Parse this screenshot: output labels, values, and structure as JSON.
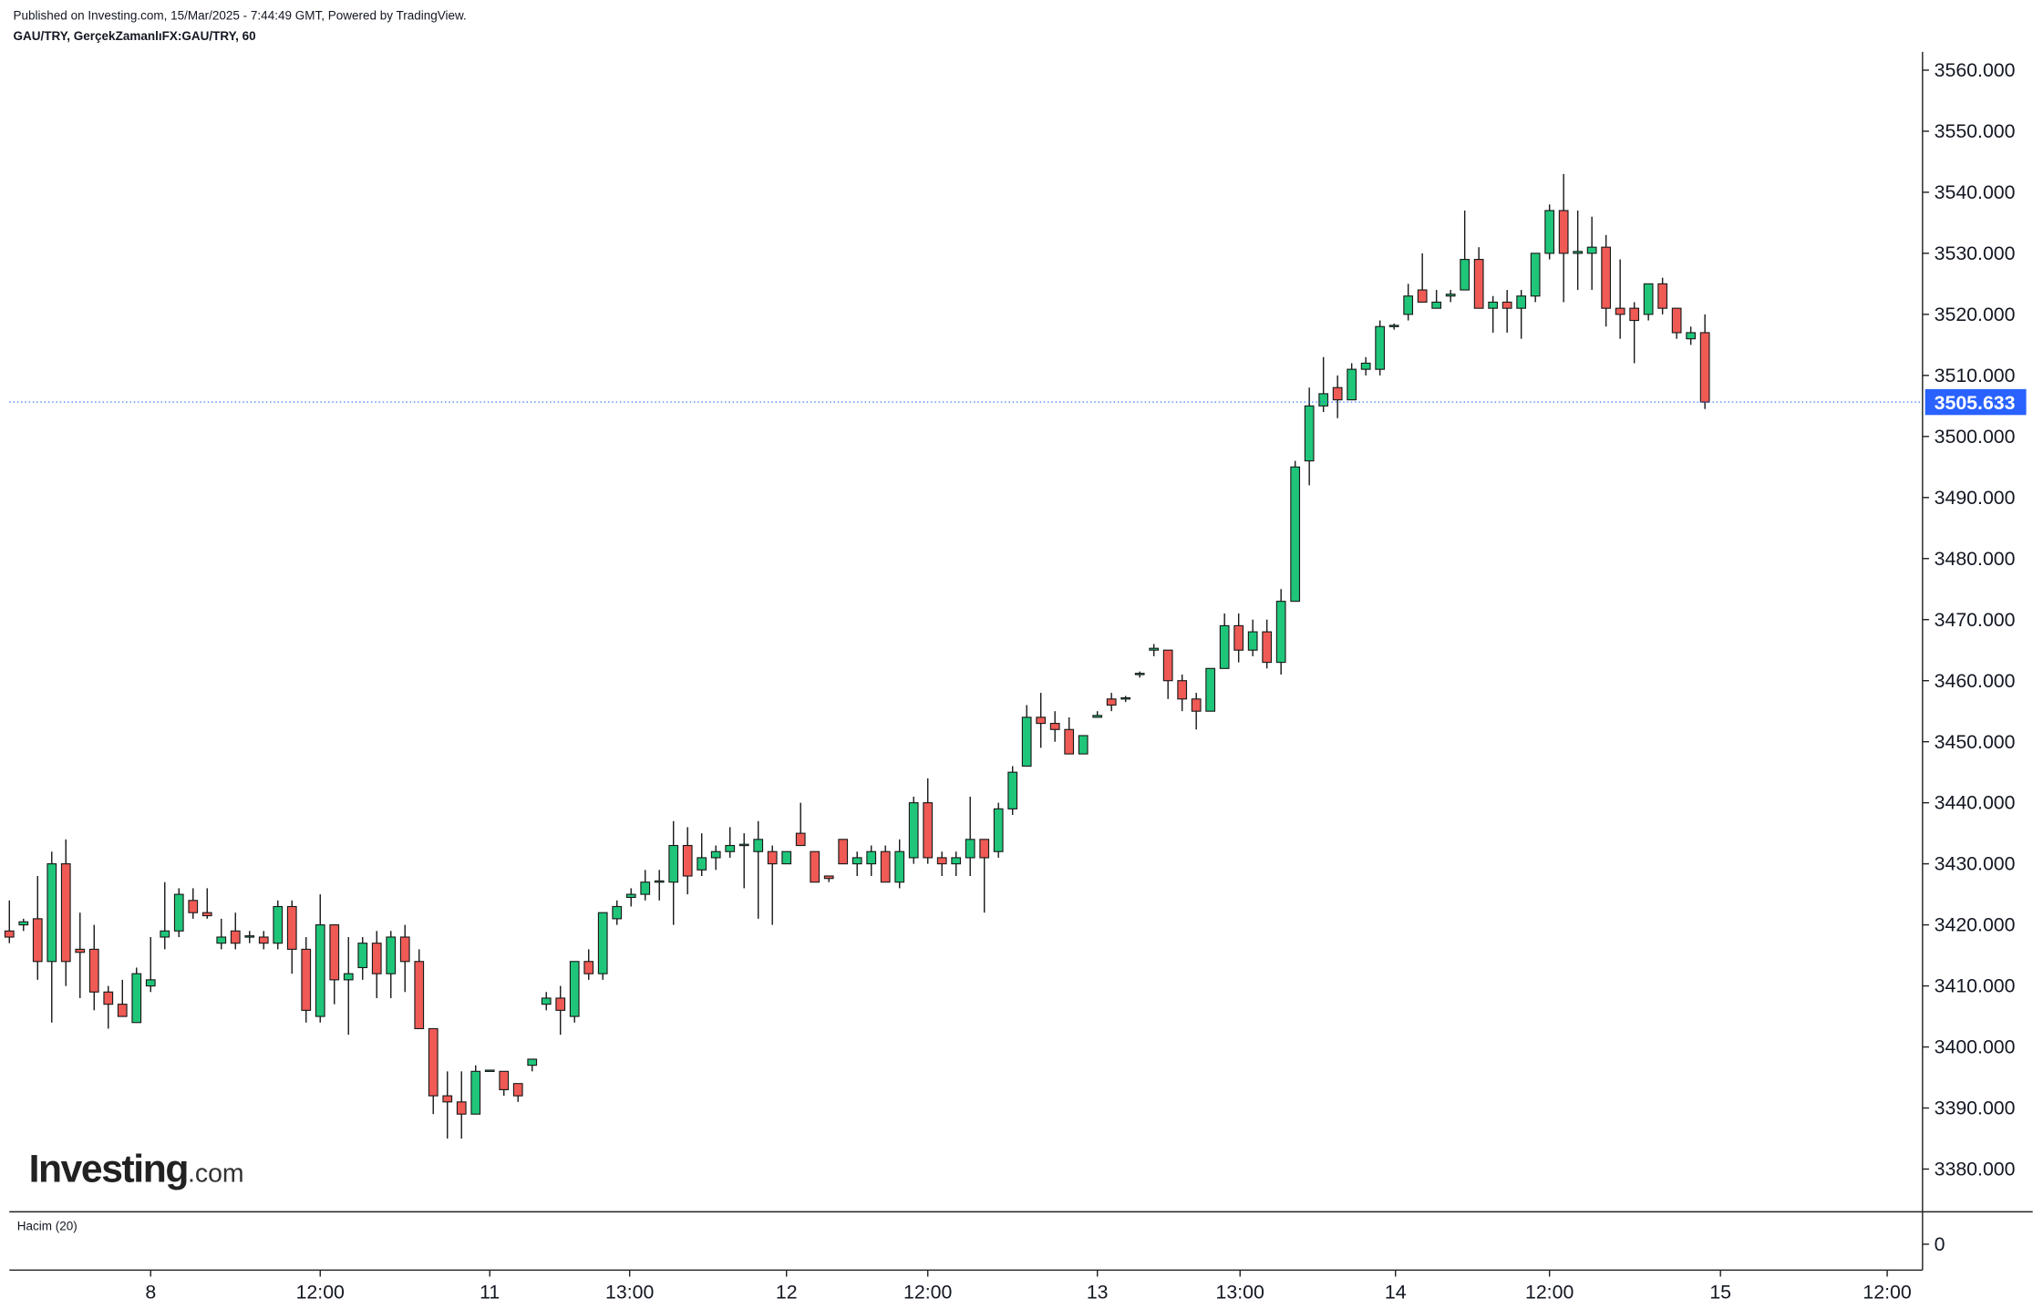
{
  "chart_data": {
    "type": "candlestick",
    "header": "Published on Investing.com, 15/Mar/2025 - 7:44:49 GMT, Powered by TradingView.",
    "symbol": "GAU/TRY, GerçekZamanlıFX:GAU/TRY, 60",
    "logo": {
      "main": "Investing",
      "suffix": ".com"
    },
    "volume_title": "Hacim (20)",
    "volume_yticks": [
      0
    ],
    "up_color": "#1fc67a",
    "down_color": "#ef5a55",
    "last_price_color": "#2962ff",
    "last_price": {
      "value": 3505.633,
      "label": "3505.633"
    },
    "ylim": [
      3373,
      3563
    ],
    "yticks": [
      {
        "value": 3380,
        "label": "3380.000"
      },
      {
        "value": 3390,
        "label": "3390.000"
      },
      {
        "value": 3400,
        "label": "3400.000"
      },
      {
        "value": 3410,
        "label": "3410.000"
      },
      {
        "value": 3420,
        "label": "3420.000"
      },
      {
        "value": 3430,
        "label": "3430.000"
      },
      {
        "value": 3440,
        "label": "3440.000"
      },
      {
        "value": 3450,
        "label": "3450.000"
      },
      {
        "value": 3460,
        "label": "3460.000"
      },
      {
        "value": 3470,
        "label": "3470.000"
      },
      {
        "value": 3480,
        "label": "3480.000"
      },
      {
        "value": 3490,
        "label": "3490.000"
      },
      {
        "value": 3500,
        "label": "3500.000"
      },
      {
        "value": 3510,
        "label": "3510.000"
      },
      {
        "value": 3520,
        "label": "3520.000"
      },
      {
        "value": 3530,
        "label": "3530.000"
      },
      {
        "value": 3540,
        "label": "3540.000"
      },
      {
        "value": 3550,
        "label": "3550.000"
      },
      {
        "value": 3560,
        "label": "3560.000"
      }
    ],
    "xlim": [
      0,
      135.4
    ],
    "xticks": [
      {
        "value": 10,
        "label": "8"
      },
      {
        "value": 22,
        "label": "12:00"
      },
      {
        "value": 34,
        "label": "11"
      },
      {
        "value": 43.9,
        "label": "13:00"
      },
      {
        "value": 55,
        "label": "12"
      },
      {
        "value": 65,
        "label": "12:00"
      },
      {
        "value": 77,
        "label": "13"
      },
      {
        "value": 87.1,
        "label": "13:00"
      },
      {
        "value": 98.1,
        "label": "14"
      },
      {
        "value": 109,
        "label": "12:00"
      },
      {
        "value": 121.1,
        "label": "15"
      },
      {
        "value": 132.9,
        "label": "12:00"
      }
    ],
    "open": [
      3419,
      3420,
      3421,
      3414,
      3430,
      3416,
      3416,
      3409,
      3407,
      3404,
      3410,
      3418,
      3419,
      3424,
      3422,
      3417,
      3419,
      3418,
      3418,
      3417,
      3423,
      3416,
      3405,
      3420,
      3411,
      3413,
      3417,
      3412,
      3418,
      3414,
      3403,
      3392,
      3391,
      3389,
      3396,
      3396,
      3394,
      3397,
      3407,
      3408,
      3405,
      3414,
      3412,
      3421,
      3424.5,
      3425,
      3427,
      3427,
      3433,
      3429,
      3431,
      3432,
      3433,
      3432,
      3432,
      3430,
      3435,
      3432,
      3428,
      3434,
      3430,
      3430,
      3432,
      3427,
      3431,
      3440,
      3431,
      3430,
      3431,
      3434,
      3432,
      3439,
      3446,
      3454,
      3453,
      3452,
      3448,
      3454,
      3457,
      3457,
      3461,
      3465,
      3465,
      3460,
      3457,
      3455,
      3462,
      3469,
      3465,
      3468,
      3463,
      3473,
      3496,
      3505,
      3508,
      3506,
      3511,
      3511,
      3518,
      3520,
      3524,
      3521,
      3523,
      3524,
      3529,
      3521,
      3522,
      3521,
      3523,
      3530,
      3537,
      3530,
      3530,
      3531,
      3521,
      3521,
      3520,
      3525,
      3521,
      3516,
      3517
    ],
    "high": [
      3424,
      3421,
      3428,
      3432,
      3434,
      3422,
      3420,
      3410,
      3411,
      3413,
      3418,
      3427,
      3426,
      3426,
      3426,
      3421,
      3422,
      3419,
      3419,
      3424,
      3424,
      3418,
      3425,
      3420,
      3418,
      3418,
      3419,
      3419,
      3420,
      3416,
      3403,
      3396,
      3396,
      3397,
      3396,
      3396,
      3394,
      3398,
      3409,
      3410,
      3414,
      3416,
      3422,
      3424,
      3426,
      3429,
      3429,
      3437,
      3436,
      3435,
      3433,
      3436,
      3435,
      3437,
      3433,
      3432,
      3440,
      3432,
      3428,
      3434,
      3432,
      3433,
      3433,
      3434,
      3441,
      3444,
      3432,
      3432,
      3441,
      3434,
      3440,
      3446,
      3456,
      3458,
      3455,
      3454,
      3451,
      3455,
      3458,
      3457.5,
      3461.5,
      3466,
      3465,
      3461,
      3458,
      3462,
      3471,
      3471,
      3470,
      3470,
      3475,
      3496,
      3508,
      3513,
      3510,
      3512,
      3513,
      3519,
      3518.5,
      3525,
      3530,
      3524,
      3524,
      3537,
      3531,
      3523,
      3524,
      3524,
      3530,
      3538,
      3543,
      3537,
      3536,
      3533,
      3529,
      3522,
      3525,
      3526,
      3521,
      3518,
      3520
    ],
    "low": [
      3417,
      3419,
      3411,
      3404,
      3410,
      3408,
      3406,
      3403,
      3405,
      3404,
      3409,
      3416,
      3418,
      3421,
      3421,
      3416,
      3416,
      3417,
      3416,
      3416,
      3412,
      3404,
      3404,
      3407,
      3402,
      3411,
      3408,
      3408,
      3409,
      3403,
      3389,
      3385,
      3385,
      3389,
      3396,
      3392,
      3391,
      3396,
      3406,
      3402,
      3404,
      3411,
      3411,
      3420,
      3423,
      3424,
      3424,
      3420,
      3425,
      3428,
      3429,
      3431,
      3426,
      3421,
      3420,
      3430,
      3433,
      3427,
      3427,
      3430,
      3428,
      3428,
      3427,
      3426,
      3430,
      3430,
      3428,
      3428,
      3428,
      3422,
      3431,
      3438,
      3446,
      3449,
      3450,
      3448,
      3448,
      3454,
      3455,
      3456.5,
      3460.5,
      3464,
      3457,
      3455,
      3452,
      3455,
      3462,
      3463,
      3464,
      3462,
      3461,
      3473,
      3492,
      3504,
      3503,
      3506,
      3510,
      3510,
      3517.5,
      3519,
      3522,
      3521,
      3522,
      3524,
      3521,
      3517,
      3517,
      3516,
      3522,
      3529,
      3522,
      3524,
      3524,
      3518,
      3516,
      3512,
      3519,
      3520,
      3516,
      3515,
      3504.5
    ],
    "close": [
      3418,
      3420.5,
      3414,
      3430,
      3414,
      3415.5,
      3409,
      3407,
      3405,
      3412,
      3411,
      3419,
      3425,
      3422,
      3421.5,
      3418,
      3417,
      3418.2,
      3417,
      3423,
      3416,
      3406,
      3420,
      3411,
      3412,
      3417,
      3412,
      3418,
      3414,
      3403,
      3392,
      3391,
      3389,
      3396,
      3396.2,
      3393,
      3392,
      3398,
      3408,
      3406,
      3414,
      3412,
      3422,
      3423,
      3425,
      3427,
      3427.2,
      3433,
      3428,
      3431,
      3432,
      3433,
      3433.2,
      3434,
      3430,
      3432,
      3433,
      3427,
      3427.6,
      3430,
      3431,
      3432,
      3427,
      3432,
      3440,
      3431,
      3430,
      3431,
      3434,
      3431,
      3439,
      3445,
      3454,
      3453,
      3452,
      3448,
      3451,
      3454.3,
      3456,
      3457.2,
      3461.2,
      3465.3,
      3460,
      3457,
      3455,
      3462,
      3469,
      3465,
      3468,
      3463,
      3473,
      3495,
      3505,
      3507,
      3506,
      3511,
      3512,
      3518,
      3518.2,
      3523,
      3522,
      3522,
      3523.3,
      3529,
      3521,
      3522,
      3521,
      3523,
      3530,
      3537,
      3530,
      3530.3,
      3531,
      3521,
      3520,
      3519,
      3525,
      3521,
      3517,
      3517,
      3505.633
    ]
  }
}
